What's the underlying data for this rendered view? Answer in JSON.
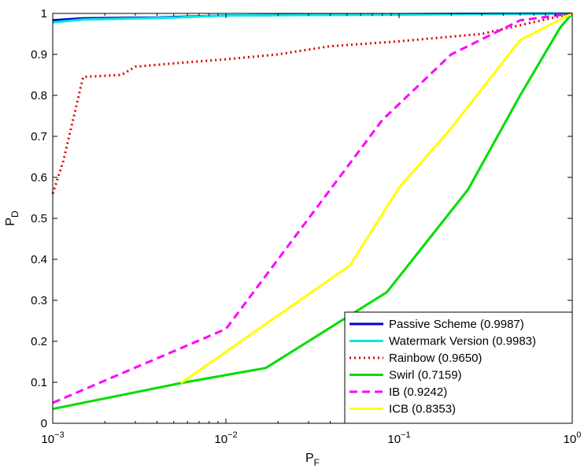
{
  "chart_data": {
    "type": "line",
    "xscale": "log",
    "xlim": [
      0.001,
      1
    ],
    "ylim": [
      0,
      1
    ],
    "xlabel": "P",
    "xlabel_sub": "F",
    "ylabel": "P",
    "ylabel_sub": "D",
    "x_ticks": [
      {
        "base": "10",
        "exp": "−3",
        "value": 0.001
      },
      {
        "base": "10",
        "exp": "−2",
        "value": 0.01
      },
      {
        "base": "10",
        "exp": "−1",
        "value": 0.1
      },
      {
        "base": "10",
        "exp": "0",
        "value": 1
      }
    ],
    "y_ticks": [
      "0",
      "0.1",
      "0.2",
      "0.3",
      "0.4",
      "0.5",
      "0.6",
      "0.7",
      "0.8",
      "0.9",
      "1"
    ],
    "grid": false,
    "legend_position": "bottom-right",
    "series": [
      {
        "name": "Passive Scheme (0.9987)",
        "color": "#0000cc",
        "style": "solid",
        "points": [
          [
            0.001,
            0.983
          ],
          [
            0.0015,
            0.988
          ],
          [
            0.004,
            0.99
          ],
          [
            0.01,
            0.995
          ],
          [
            0.1,
            0.998
          ],
          [
            1,
            1.0
          ]
        ]
      },
      {
        "name": "Watermark Version (0.9983)",
        "color": "#00e6e6",
        "style": "solid",
        "points": [
          [
            0.001,
            0.978
          ],
          [
            0.0015,
            0.985
          ],
          [
            0.005,
            0.99
          ],
          [
            0.01,
            0.995
          ],
          [
            0.1,
            0.997
          ],
          [
            1,
            1.0
          ]
        ]
      },
      {
        "name": "Rainbow (0.9650)",
        "color": "#dd0000",
        "style": "dotted",
        "points": [
          [
            0.001,
            0.56
          ],
          [
            0.00115,
            0.64
          ],
          [
            0.0015,
            0.845
          ],
          [
            0.0025,
            0.85
          ],
          [
            0.003,
            0.87
          ],
          [
            0.005,
            0.878
          ],
          [
            0.01,
            0.888
          ],
          [
            0.02,
            0.9
          ],
          [
            0.04,
            0.92
          ],
          [
            0.1,
            0.932
          ],
          [
            0.3,
            0.95
          ],
          [
            1,
            1.0
          ]
        ]
      },
      {
        "name": "Swirl (0.7159)",
        "color": "#00dd00",
        "style": "solid",
        "points": [
          [
            0.001,
            0.035
          ],
          [
            0.0055,
            0.098
          ],
          [
            0.017,
            0.135
          ],
          [
            0.085,
            0.32
          ],
          [
            0.25,
            0.57
          ],
          [
            0.5,
            0.8
          ],
          [
            0.85,
            0.965
          ],
          [
            1,
            1.0
          ]
        ]
      },
      {
        "name": "IB (0.9242)",
        "color": "#ff00ff",
        "style": "dashed",
        "points": [
          [
            0.001,
            0.05
          ],
          [
            0.01,
            0.23
          ],
          [
            0.08,
            0.74
          ],
          [
            0.2,
            0.9
          ],
          [
            0.5,
            0.983
          ],
          [
            1,
            1.0
          ]
        ]
      },
      {
        "name": "ICB (0.8353)",
        "color": "#ffff00",
        "style": "solid",
        "points": [
          [
            0.0055,
            0.098
          ],
          [
            0.052,
            0.385
          ],
          [
            0.1,
            0.575
          ],
          [
            0.2,
            0.72
          ],
          [
            0.5,
            0.935
          ],
          [
            1,
            1.0
          ]
        ]
      }
    ]
  }
}
